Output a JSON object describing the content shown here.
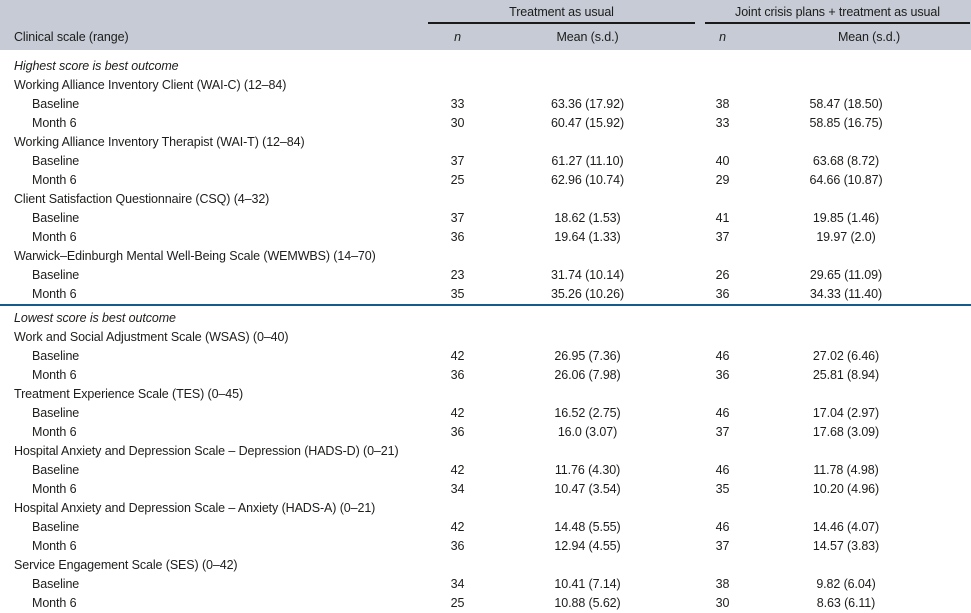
{
  "table": {
    "header": {
      "col1": "Clinical scale (range)",
      "group1": "Treatment as usual",
      "group2": "Joint crisis plans + treatment as usual",
      "sub_n_tau": "n",
      "sub_mean_tau": "Mean (s.d.)",
      "sub_n_jcp": "n",
      "sub_mean_jcp": "Mean (s.d.)"
    },
    "sections": [
      {
        "section_label": "Highest score is best outcome",
        "scales": [
          {
            "name": "Working Alliance Inventory Client (WAI-C) (12–84)",
            "rows": [
              {
                "label": "Baseline",
                "tau_n": "33",
                "tau_mean": "63.36 (17.92)",
                "jcp_n": "38",
                "jcp_mean": "58.47 (18.50)"
              },
              {
                "label": "Month 6",
                "tau_n": "30",
                "tau_mean": "60.47 (15.92)",
                "jcp_n": "33",
                "jcp_mean": "58.85 (16.75)"
              }
            ]
          },
          {
            "name": "Working Alliance Inventory Therapist (WAI-T) (12–84)",
            "rows": [
              {
                "label": "Baseline",
                "tau_n": "37",
                "tau_mean": "61.27 (11.10)",
                "jcp_n": "40",
                "jcp_mean": "63.68 (8.72)"
              },
              {
                "label": "Month 6",
                "tau_n": "25",
                "tau_mean": "62.96 (10.74)",
                "jcp_n": "29",
                "jcp_mean": "64.66 (10.87)"
              }
            ]
          },
          {
            "name": "Client Satisfaction Questionnaire (CSQ) (4–32)",
            "rows": [
              {
                "label": "Baseline",
                "tau_n": "37",
                "tau_mean": "18.62 (1.53)",
                "jcp_n": "41",
                "jcp_mean": "19.85 (1.46)"
              },
              {
                "label": "Month 6",
                "tau_n": "36",
                "tau_mean": "19.64 (1.33)",
                "jcp_n": "37",
                "jcp_mean": "19.97 (2.0)"
              }
            ]
          },
          {
            "name": "Warwick–Edinburgh Mental Well-Being Scale (WEMWBS) (14–70)",
            "rows": [
              {
                "label": "Baseline",
                "tau_n": "23",
                "tau_mean": "31.74 (10.14)",
                "jcp_n": "26",
                "jcp_mean": "29.65 (11.09)"
              },
              {
                "label": "Month 6",
                "tau_n": "35",
                "tau_mean": "35.26 (10.26)",
                "jcp_n": "36",
                "jcp_mean": "34.33 (11.40)"
              }
            ]
          }
        ]
      },
      {
        "section_label": "Lowest score is best outcome",
        "scales": [
          {
            "name": "Work and Social Adjustment Scale (WSAS) (0–40)",
            "rows": [
              {
                "label": "Baseline",
                "tau_n": "42",
                "tau_mean": "26.95 (7.36)",
                "jcp_n": "46",
                "jcp_mean": "27.02 (6.46)"
              },
              {
                "label": "Month 6",
                "tau_n": "36",
                "tau_mean": "26.06 (7.98)",
                "jcp_n": "36",
                "jcp_mean": "25.81 (8.94)"
              }
            ]
          },
          {
            "name": "Treatment Experience Scale (TES) (0–45)",
            "rows": [
              {
                "label": "Baseline",
                "tau_n": "42",
                "tau_mean": "16.52 (2.75)",
                "jcp_n": "46",
                "jcp_mean": "17.04 (2.97)"
              },
              {
                "label": "Month 6",
                "tau_n": "36",
                "tau_mean": "16.0 (3.07)",
                "jcp_n": "37",
                "jcp_mean": "17.68 (3.09)"
              }
            ]
          },
          {
            "name": "Hospital Anxiety and Depression Scale – Depression (HADS-D) (0–21)",
            "rows": [
              {
                "label": "Baseline",
                "tau_n": "42",
                "tau_mean": "11.76 (4.30)",
                "jcp_n": "46",
                "jcp_mean": "11.78 (4.98)"
              },
              {
                "label": "Month 6",
                "tau_n": "34",
                "tau_mean": "10.47 (3.54)",
                "jcp_n": "35",
                "jcp_mean": "10.20 (4.96)"
              }
            ]
          },
          {
            "name": "Hospital Anxiety and Depression Scale – Anxiety (HADS-A) (0–21)",
            "rows": [
              {
                "label": "Baseline",
                "tau_n": "42",
                "tau_mean": "14.48 (5.55)",
                "jcp_n": "46",
                "jcp_mean": "14.46 (4.07)"
              },
              {
                "label": "Month 6",
                "tau_n": "36",
                "tau_mean": "12.94 (4.55)",
                "jcp_n": "37",
                "jcp_mean": "14.57 (3.83)"
              }
            ]
          },
          {
            "name": "Service Engagement Scale (SES) (0–42)",
            "rows": [
              {
                "label": "Baseline",
                "tau_n": "34",
                "tau_mean": "10.41 (7.14)",
                "jcp_n": "38",
                "jcp_mean": "9.82 (6.04)"
              },
              {
                "label": "Month 6",
                "tau_n": "25",
                "tau_mean": "10.88 (5.62)",
                "jcp_n": "30",
                "jcp_mean": "8.63 (6.11)"
              }
            ]
          }
        ]
      }
    ]
  },
  "colors": {
    "header_bg": "#c6cbd5",
    "section_rule_blue": "#155c8c",
    "spanner_rule_black": "#1a1a1a",
    "text": "#1d1d1b"
  }
}
